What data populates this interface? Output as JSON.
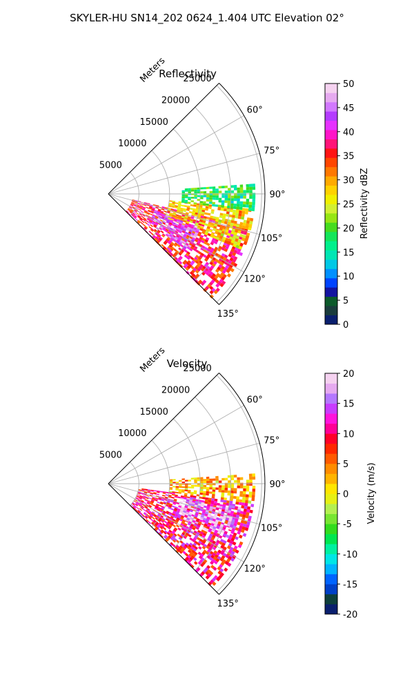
{
  "figure": {
    "title": "SKYLER-HU  SN14_202  0624_1.404 UTC Elevation 02°"
  },
  "chart_data": [
    {
      "type": "heatmap",
      "subtype": "polar-sector-radar",
      "title": "Reflectivity",
      "radial_axis_label": "Meters",
      "radial_ticks": [
        "5000",
        "10000",
        "15000",
        "20000",
        "25000"
      ],
      "radial_tick_values": [
        5000,
        10000,
        15000,
        20000,
        25000
      ],
      "radial_range": [
        0,
        25000
      ],
      "azimuth_ticks": [
        "60°",
        "75°",
        "90°",
        "105°",
        "120°",
        "135°"
      ],
      "azimuth_tick_values": [
        60,
        75,
        90,
        105,
        120,
        135
      ],
      "azimuth_range": [
        45,
        135
      ],
      "grid": true,
      "colorbar": {
        "label": "Reflectivity dBZ",
        "ticks": [
          "0",
          "5",
          "10",
          "15",
          "20",
          "25",
          "30",
          "35",
          "40",
          "45",
          "50"
        ],
        "range": [
          0,
          50
        ]
      },
      "echo_regions": [
        {
          "az": [
            103,
            135
          ],
          "range": [
            4000,
            24000
          ],
          "dbz": 36
        },
        {
          "az": [
            96,
            112
          ],
          "range": [
            10000,
            24000
          ],
          "dbz": 28
        },
        {
          "az": [
            86,
            96
          ],
          "range": [
            12000,
            24000
          ],
          "dbz": 18
        },
        {
          "az": [
            110,
            125
          ],
          "range": [
            8000,
            16000
          ],
          "dbz": 44
        }
      ]
    },
    {
      "type": "heatmap",
      "subtype": "polar-sector-radar",
      "title": "Velocity",
      "radial_axis_label": "Meters",
      "radial_ticks": [
        "5000",
        "10000",
        "15000",
        "20000",
        "25000"
      ],
      "radial_tick_values": [
        5000,
        10000,
        15000,
        20000,
        25000
      ],
      "radial_range": [
        0,
        25000
      ],
      "azimuth_ticks": [
        "60°",
        "75°",
        "90°",
        "105°",
        "120°",
        "135°"
      ],
      "azimuth_tick_values": [
        60,
        75,
        90,
        105,
        120,
        135
      ],
      "azimuth_range": [
        45,
        135
      ],
      "grid": true,
      "colorbar": {
        "label": "Velocity (m/s)",
        "ticks": [
          "-20",
          "-15",
          "-10",
          "-5",
          "0",
          "5",
          "10",
          "15",
          "20"
        ],
        "range": [
          -20,
          20
        ]
      },
      "echo_regions": [
        {
          "az": [
            86,
            98
          ],
          "range": [
            10000,
            24000
          ],
          "vel": 3
        },
        {
          "az": [
            98,
            135
          ],
          "range": [
            5000,
            24000
          ],
          "vel": 10
        },
        {
          "az": [
            100,
            115
          ],
          "range": [
            12000,
            22000
          ],
          "vel": 16
        }
      ]
    }
  ],
  "colors": {
    "reflectivity_scale": [
      "#0a1f6e",
      "#1a3c3c",
      "#0c5a2a",
      "#1414a0",
      "#0044ff",
      "#0090ff",
      "#00c8e6",
      "#00e6b4",
      "#00f08c",
      "#14e65a",
      "#46dc1e",
      "#96e614",
      "#d2f032",
      "#f0f000",
      "#ffd200",
      "#ffaa00",
      "#ff7800",
      "#ff4600",
      "#ff1414",
      "#ff1478",
      "#ff14c8",
      "#e632ff",
      "#b43cff",
      "#d278ff",
      "#e6aaf0",
      "#f5d2f0"
    ],
    "velocity_scale": [
      "#0a1f6e",
      "#0e3f3c",
      "#0040c8",
      "#0064ff",
      "#00b4ff",
      "#00e6e6",
      "#00f0a0",
      "#00e650",
      "#32dc1e",
      "#78e632",
      "#b4f050",
      "#e6f014",
      "#ffe600",
      "#ffb400",
      "#ff8c00",
      "#ff5a00",
      "#ff2800",
      "#ff0028",
      "#ff0096",
      "#ff14dc",
      "#c83cff",
      "#b478ff",
      "#e6aaf0",
      "#f5d2f0"
    ]
  }
}
